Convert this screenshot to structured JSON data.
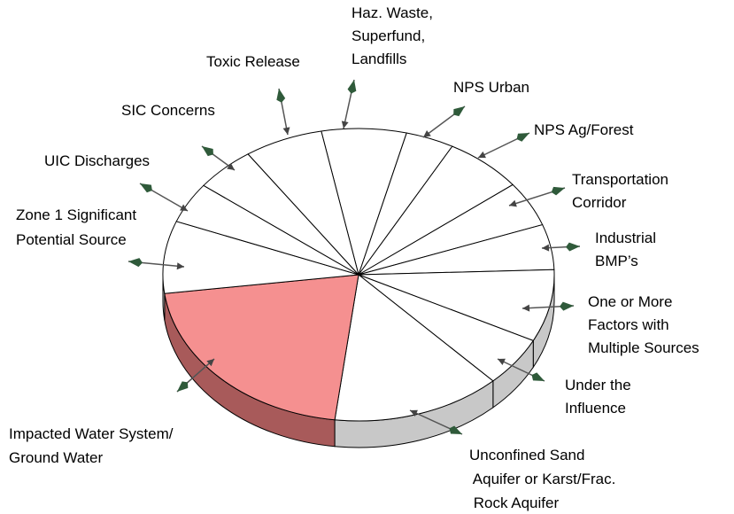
{
  "chart_data": {
    "type": "pie",
    "categories": [
      "Haz. Waste,\nSuperfund,\nLandfills",
      "NPS Urban",
      "NPS Ag/Forest",
      "Transportation\nCorridor",
      "Industrial\nBMP’s",
      "One or More\nFactors with\nMultiple Sources",
      "Under the\nInfluence",
      "Unconfined Sand\n Aquifer or Karst/Frac.\n Rock Aquifer",
      "Impacted Water System/\nGround Water",
      "Zone 1 Significant\nPotential Source",
      "UIC Discharges",
      "SIC Concerns",
      "Toxic Release"
    ],
    "values": [
      7,
      4,
      6.5,
      5,
      5,
      8,
      5.5,
      14,
      21,
      8,
      4.5,
      5,
      6.5
    ],
    "colors": [
      "#ffffff",
      "#ffffff",
      "#ffffff",
      "#ffffff",
      "#ffffff",
      "#ffffff",
      "#ffffff",
      "#ffffff",
      "#f59090",
      "#ffffff",
      "#ffffff",
      "#ffffff",
      "#ffffff"
    ],
    "side_colors": [
      "#c8c8c8",
      "#c8c8c8",
      "#c8c8c8",
      "#c8c8c8",
      "#c8c8c8",
      "#c8c8c8",
      "#c8c8c8",
      "#c8c8c8",
      "#a85a5a",
      "#c8c8c8",
      "#c8c8c8",
      "#c8c8c8",
      "#c8c8c8"
    ]
  }
}
